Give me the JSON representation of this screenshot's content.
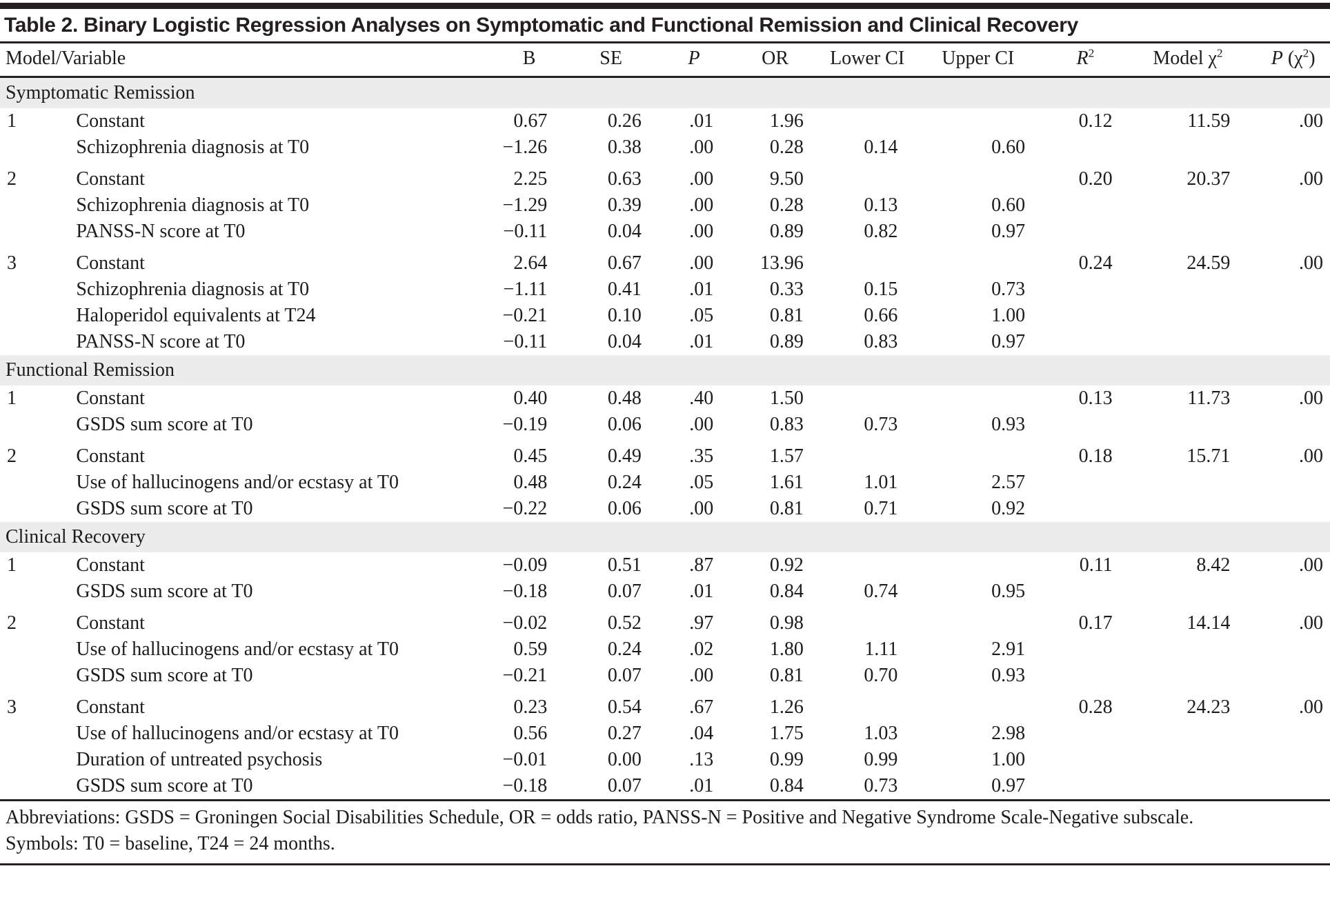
{
  "title": "Table 2. Binary Logistic Regression Analyses on Symptomatic and Functional Remission and Clinical Recovery",
  "table": {
    "headers": [
      {
        "key": "model_variable",
        "segments": [
          {
            "t": "Model/Variable"
          }
        ]
      },
      {
        "key": "b",
        "segments": [
          {
            "t": "B"
          }
        ]
      },
      {
        "key": "se",
        "segments": [
          {
            "t": "SE"
          }
        ]
      },
      {
        "key": "p",
        "segments": [
          {
            "t": "P",
            "i": true
          }
        ]
      },
      {
        "key": "or",
        "segments": [
          {
            "t": "OR"
          }
        ]
      },
      {
        "key": "lower_ci",
        "segments": [
          {
            "t": "Lower CI"
          }
        ]
      },
      {
        "key": "upper_ci",
        "segments": [
          {
            "t": "Upper CI"
          }
        ]
      },
      {
        "key": "r2",
        "segments": [
          {
            "t": "R",
            "i": true
          },
          {
            "t": "2",
            "sup": true
          }
        ]
      },
      {
        "key": "model_chi2",
        "segments": [
          {
            "t": "Model χ"
          },
          {
            "t": "2",
            "sup": true
          }
        ]
      },
      {
        "key": "p_chi2",
        "segments": [
          {
            "t": "P",
            "i": true
          },
          {
            "t": " (χ"
          },
          {
            "t": "2",
            "sup": true
          },
          {
            "t": ")"
          }
        ]
      }
    ],
    "column_keys": [
      "b",
      "se",
      "p",
      "or",
      "lower_ci",
      "upper_ci",
      "r2",
      "model_chi2",
      "p_chi2"
    ],
    "sections": [
      {
        "name": "Symptomatic Remission",
        "models": [
          {
            "number": "1",
            "rows": [
              {
                "variable": "Constant",
                "b": "0.67",
                "se": "0.26",
                "p": ".01",
                "or": "1.96",
                "lower_ci": "",
                "upper_ci": "",
                "r2": "0.12",
                "model_chi2": "11.59",
                "p_chi2": ".00"
              },
              {
                "variable": "Schizophrenia diagnosis at T0",
                "b": "−1.26",
                "se": "0.38",
                "p": ".00",
                "or": "0.28",
                "lower_ci": "0.14",
                "upper_ci": "0.60",
                "r2": "",
                "model_chi2": "",
                "p_chi2": ""
              }
            ]
          },
          {
            "number": "2",
            "rows": [
              {
                "variable": "Constant",
                "b": "2.25",
                "se": "0.63",
                "p": ".00",
                "or": "9.50",
                "lower_ci": "",
                "upper_ci": "",
                "r2": "0.20",
                "model_chi2": "20.37",
                "p_chi2": ".00"
              },
              {
                "variable": "Schizophrenia diagnosis at T0",
                "b": "−1.29",
                "se": "0.39",
                "p": ".00",
                "or": "0.28",
                "lower_ci": "0.13",
                "upper_ci": "0.60",
                "r2": "",
                "model_chi2": "",
                "p_chi2": ""
              },
              {
                "variable": "PANSS-N score at T0",
                "b": "−0.11",
                "se": "0.04",
                "p": ".00",
                "or": "0.89",
                "lower_ci": "0.82",
                "upper_ci": "0.97",
                "r2": "",
                "model_chi2": "",
                "p_chi2": ""
              }
            ]
          },
          {
            "number": "3",
            "rows": [
              {
                "variable": "Constant",
                "b": "2.64",
                "se": "0.67",
                "p": ".00",
                "or": "13.96",
                "lower_ci": "",
                "upper_ci": "",
                "r2": "0.24",
                "model_chi2": "24.59",
                "p_chi2": ".00"
              },
              {
                "variable": "Schizophrenia diagnosis at T0",
                "b": "−1.11",
                "se": "0.41",
                "p": ".01",
                "or": "0.33",
                "lower_ci": "0.15",
                "upper_ci": "0.73",
                "r2": "",
                "model_chi2": "",
                "p_chi2": ""
              },
              {
                "variable": "Haloperidol equivalents at T24",
                "b": "−0.21",
                "se": "0.10",
                "p": ".05",
                "or": "0.81",
                "lower_ci": "0.66",
                "upper_ci": "1.00",
                "r2": "",
                "model_chi2": "",
                "p_chi2": ""
              },
              {
                "variable": "PANSS-N score at T0",
                "b": "−0.11",
                "se": "0.04",
                "p": ".01",
                "or": "0.89",
                "lower_ci": "0.83",
                "upper_ci": "0.97",
                "r2": "",
                "model_chi2": "",
                "p_chi2": ""
              }
            ]
          }
        ]
      },
      {
        "name": "Functional Remission",
        "models": [
          {
            "number": "1",
            "rows": [
              {
                "variable": "Constant",
                "b": "0.40",
                "se": "0.48",
                "p": ".40",
                "or": "1.50",
                "lower_ci": "",
                "upper_ci": "",
                "r2": "0.13",
                "model_chi2": "11.73",
                "p_chi2": ".00"
              },
              {
                "variable": "GSDS sum score at T0",
                "b": "−0.19",
                "se": "0.06",
                "p": ".00",
                "or": "0.83",
                "lower_ci": "0.73",
                "upper_ci": "0.93",
                "r2": "",
                "model_chi2": "",
                "p_chi2": ""
              }
            ]
          },
          {
            "number": "2",
            "rows": [
              {
                "variable": "Constant",
                "b": "0.45",
                "se": "0.49",
                "p": ".35",
                "or": "1.57",
                "lower_ci": "",
                "upper_ci": "",
                "r2": "0.18",
                "model_chi2": "15.71",
                "p_chi2": ".00"
              },
              {
                "variable": "Use of hallucinogens and/or ecstasy at T0",
                "b": "0.48",
                "se": "0.24",
                "p": ".05",
                "or": "1.61",
                "lower_ci": "1.01",
                "upper_ci": "2.57",
                "r2": "",
                "model_chi2": "",
                "p_chi2": ""
              },
              {
                "variable": "GSDS sum score at T0",
                "b": "−0.22",
                "se": "0.06",
                "p": ".00",
                "or": "0.81",
                "lower_ci": "0.71",
                "upper_ci": "0.92",
                "r2": "",
                "model_chi2": "",
                "p_chi2": ""
              }
            ]
          }
        ]
      },
      {
        "name": "Clinical Recovery",
        "models": [
          {
            "number": "1",
            "rows": [
              {
                "variable": "Constant",
                "b": "−0.09",
                "se": "0.51",
                "p": ".87",
                "or": "0.92",
                "lower_ci": "",
                "upper_ci": "",
                "r2": "0.11",
                "model_chi2": "8.42",
                "p_chi2": ".00"
              },
              {
                "variable": "GSDS sum score at T0",
                "b": "−0.18",
                "se": "0.07",
                "p": ".01",
                "or": "0.84",
                "lower_ci": "0.74",
                "upper_ci": "0.95",
                "r2": "",
                "model_chi2": "",
                "p_chi2": ""
              }
            ]
          },
          {
            "number": "2",
            "rows": [
              {
                "variable": "Constant",
                "b": "−0.02",
                "se": "0.52",
                "p": ".97",
                "or": "0.98",
                "lower_ci": "",
                "upper_ci": "",
                "r2": "0.17",
                "model_chi2": "14.14",
                "p_chi2": ".00"
              },
              {
                "variable": "Use of hallucinogens and/or ecstasy at T0",
                "b": "0.59",
                "se": "0.24",
                "p": ".02",
                "or": "1.80",
                "lower_ci": "1.11",
                "upper_ci": "2.91",
                "r2": "",
                "model_chi2": "",
                "p_chi2": ""
              },
              {
                "variable": "GSDS sum score at T0",
                "b": "−0.21",
                "se": "0.07",
                "p": ".00",
                "or": "0.81",
                "lower_ci": "0.70",
                "upper_ci": "0.93",
                "r2": "",
                "model_chi2": "",
                "p_chi2": ""
              }
            ]
          },
          {
            "number": "3",
            "rows": [
              {
                "variable": "Constant",
                "b": "0.23",
                "se": "0.54",
                "p": ".67",
                "or": "1.26",
                "lower_ci": "",
                "upper_ci": "",
                "r2": "0.28",
                "model_chi2": "24.23",
                "p_chi2": ".00"
              },
              {
                "variable": "Use of hallucinogens and/or ecstasy at T0",
                "b": "0.56",
                "se": "0.27",
                "p": ".04",
                "or": "1.75",
                "lower_ci": "1.03",
                "upper_ci": "2.98",
                "r2": "",
                "model_chi2": "",
                "p_chi2": ""
              },
              {
                "variable": "Duration of untreated psychosis",
                "b": "−0.01",
                "se": "0.00",
                "p": ".13",
                "or": "0.99",
                "lower_ci": "0.99",
                "upper_ci": "1.00",
                "r2": "",
                "model_chi2": "",
                "p_chi2": ""
              },
              {
                "variable": "GSDS sum score at T0",
                "b": "−0.18",
                "se": "0.07",
                "p": ".01",
                "or": "0.84",
                "lower_ci": "0.73",
                "upper_ci": "0.97",
                "r2": "",
                "model_chi2": "",
                "p_chi2": ""
              }
            ]
          }
        ]
      }
    ],
    "footnotes": [
      "Abbreviations: GSDS = Groningen Social Disabilities Schedule, OR = odds ratio, PANSS-N = Positive and Negative Syndrome Scale-Negative subscale.",
      "Symbols: T0 = baseline, T24 = 24 months."
    ]
  },
  "chart_data": {
    "type": "table",
    "title": "Table 2. Binary Logistic Regression Analyses on Symptomatic and Functional Remission and Clinical Recovery",
    "columns": [
      "Model/Variable",
      "B",
      "SE",
      "P",
      "OR",
      "Lower CI",
      "Upper CI",
      "R2",
      "Model chi2",
      "P (chi2)"
    ]
  }
}
